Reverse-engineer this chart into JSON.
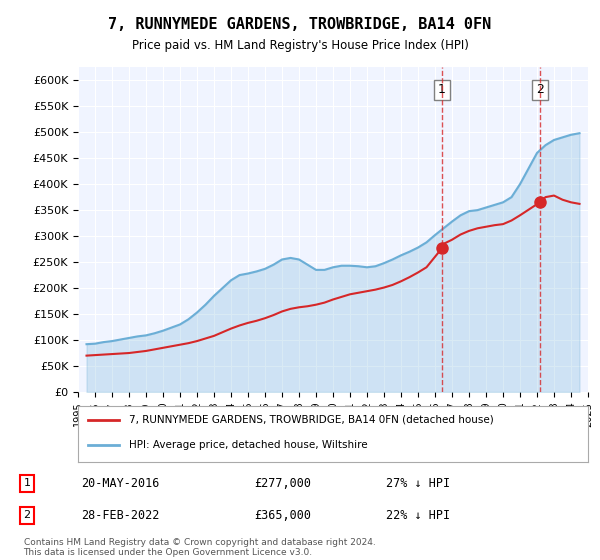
{
  "title": "7, RUNNYMEDE GARDENS, TROWBRIDGE, BA14 0FN",
  "subtitle": "Price paid vs. HM Land Registry's House Price Index (HPI)",
  "ylabel": "",
  "ylim": [
    0,
    625000
  ],
  "yticks": [
    0,
    50000,
    100000,
    150000,
    200000,
    250000,
    300000,
    350000,
    400000,
    450000,
    500000,
    550000,
    600000
  ],
  "hpi_color": "#6baed6",
  "sale_color": "#d62728",
  "annotation_color": "#d62728",
  "dashed_color": "#d62728",
  "legend_box_color": "#ffffff",
  "background_color": "#ffffff",
  "plot_bg_color": "#f0f4ff",
  "grid_color": "#ffffff",
  "sale1_label": "1",
  "sale2_label": "2",
  "sale1_date": "20-MAY-2016",
  "sale1_price": "£277,000",
  "sale1_hpi": "27% ↓ HPI",
  "sale2_date": "28-FEB-2022",
  "sale2_price": "£365,000",
  "sale2_hpi": "22% ↓ HPI",
  "legend1": "7, RUNNYMEDE GARDENS, TROWBRIDGE, BA14 0FN (detached house)",
  "legend2": "HPI: Average price, detached house, Wiltshire",
  "footnote": "Contains HM Land Registry data © Crown copyright and database right 2024.\nThis data is licensed under the Open Government Licence v3.0.",
  "hpi_x": [
    1995.5,
    1996.0,
    1996.5,
    1997.0,
    1997.5,
    1998.0,
    1998.5,
    1999.0,
    1999.5,
    2000.0,
    2000.5,
    2001.0,
    2001.5,
    2002.0,
    2002.5,
    2003.0,
    2003.5,
    2004.0,
    2004.5,
    2005.0,
    2005.5,
    2006.0,
    2006.5,
    2007.0,
    2007.5,
    2008.0,
    2008.5,
    2009.0,
    2009.5,
    2010.0,
    2010.5,
    2011.0,
    2011.5,
    2012.0,
    2012.5,
    2013.0,
    2013.5,
    2014.0,
    2014.5,
    2015.0,
    2015.5,
    2016.0,
    2016.5,
    2017.0,
    2017.5,
    2018.0,
    2018.5,
    2019.0,
    2019.5,
    2020.0,
    2020.5,
    2021.0,
    2021.5,
    2022.0,
    2022.5,
    2023.0,
    2023.5,
    2024.0,
    2024.5
  ],
  "hpi_y": [
    92000,
    93000,
    96000,
    98000,
    101000,
    104000,
    107000,
    109000,
    113000,
    118000,
    124000,
    130000,
    140000,
    153000,
    168000,
    185000,
    200000,
    215000,
    225000,
    228000,
    232000,
    237000,
    245000,
    255000,
    258000,
    255000,
    245000,
    235000,
    235000,
    240000,
    243000,
    243000,
    242000,
    240000,
    242000,
    248000,
    255000,
    263000,
    270000,
    278000,
    288000,
    302000,
    315000,
    328000,
    340000,
    348000,
    350000,
    355000,
    360000,
    365000,
    375000,
    400000,
    430000,
    460000,
    475000,
    485000,
    490000,
    495000,
    498000
  ],
  "sale_x": [
    1995.5,
    1996.0,
    1996.5,
    1997.0,
    1997.5,
    1998.0,
    1998.5,
    1999.0,
    1999.5,
    2000.0,
    2000.5,
    2001.0,
    2001.5,
    2002.0,
    2002.5,
    2003.0,
    2003.5,
    2004.0,
    2004.5,
    2005.0,
    2005.5,
    2006.0,
    2006.5,
    2007.0,
    2007.5,
    2008.0,
    2008.5,
    2009.0,
    2009.5,
    2010.0,
    2010.5,
    2011.0,
    2011.5,
    2012.0,
    2012.5,
    2013.0,
    2013.5,
    2014.0,
    2014.5,
    2015.0,
    2015.5,
    2016.417,
    2016.5,
    2017.0,
    2017.5,
    2018.0,
    2018.5,
    2019.0,
    2019.5,
    2020.0,
    2020.5,
    2021.0,
    2022.167,
    2022.5,
    2023.0,
    2023.5,
    2024.0,
    2024.5
  ],
  "sale_y": [
    70000,
    71000,
    72000,
    73000,
    74000,
    75000,
    77000,
    79000,
    82000,
    85000,
    88000,
    91000,
    94000,
    98000,
    103000,
    108000,
    115000,
    122000,
    128000,
    133000,
    137000,
    142000,
    148000,
    155000,
    160000,
    163000,
    165000,
    168000,
    172000,
    178000,
    183000,
    188000,
    191000,
    194000,
    197000,
    201000,
    206000,
    213000,
    221000,
    230000,
    240000,
    277000,
    285000,
    293000,
    303000,
    310000,
    315000,
    318000,
    321000,
    323000,
    330000,
    340000,
    365000,
    375000,
    378000,
    370000,
    365000,
    362000
  ],
  "sale1_x": 2016.417,
  "sale1_y": 277000,
  "sale2_x": 2022.167,
  "sale2_y": 365000,
  "xmin": 1995,
  "xmax": 2025
}
